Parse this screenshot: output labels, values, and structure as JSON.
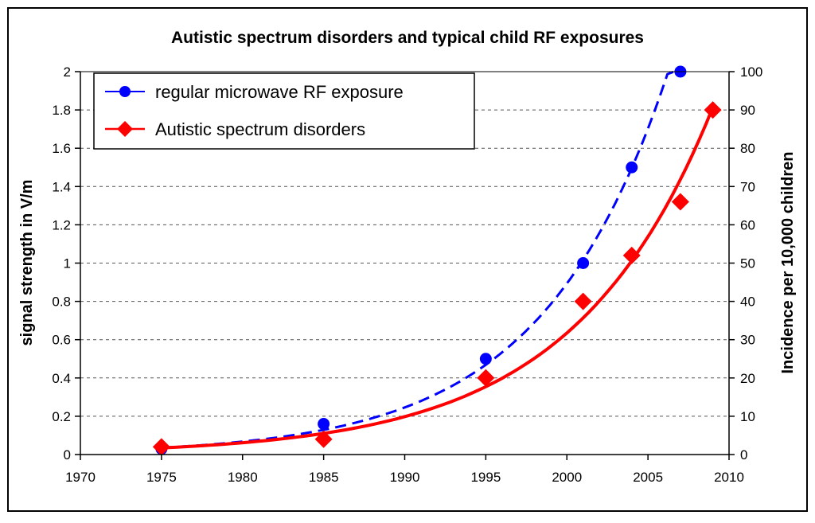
{
  "chart_data": {
    "type": "line",
    "title": "Autistic spectrum disorders and typical child RF exposures",
    "xlabel": "",
    "ylabel": "signal strength in V/m",
    "y2label": "Incidence per 10,000 children",
    "xlim": [
      1970,
      2010
    ],
    "ylim": [
      0,
      2
    ],
    "y2lim": [
      0,
      100
    ],
    "xticks": [
      "1970",
      "1975",
      "1980",
      "1985",
      "1990",
      "1995",
      "2000",
      "2005",
      "2010"
    ],
    "yticks": [
      "0",
      "0.2",
      "0.4",
      "0.6",
      "0.8",
      "1",
      "1.2",
      "1.4",
      "1.6",
      "1.8",
      "2"
    ],
    "y2ticks": [
      "0",
      "10",
      "20",
      "30",
      "40",
      "50",
      "60",
      "70",
      "80",
      "90",
      "100"
    ],
    "grid": "horizontal dashed",
    "legend_position": "top-left",
    "series": [
      {
        "name": "regular microwave RF exposure",
        "axis": "left",
        "color": "#0000ff",
        "marker": "circle",
        "trendline": "dashed exponential",
        "x": [
          1975,
          1985,
          1995,
          2001,
          2004,
          2007
        ],
        "y": [
          0.03,
          0.16,
          0.5,
          1.0,
          1.5,
          2.0
        ]
      },
      {
        "name": "Autistic spectrum disorders",
        "axis": "right",
        "color": "#ff0000",
        "marker": "diamond",
        "trendline": "solid exponential",
        "x": [
          1975,
          1985,
          1995,
          2001,
          2004,
          2007,
          2009
        ],
        "y": [
          2,
          4,
          20,
          40,
          52,
          66,
          90
        ]
      }
    ]
  }
}
